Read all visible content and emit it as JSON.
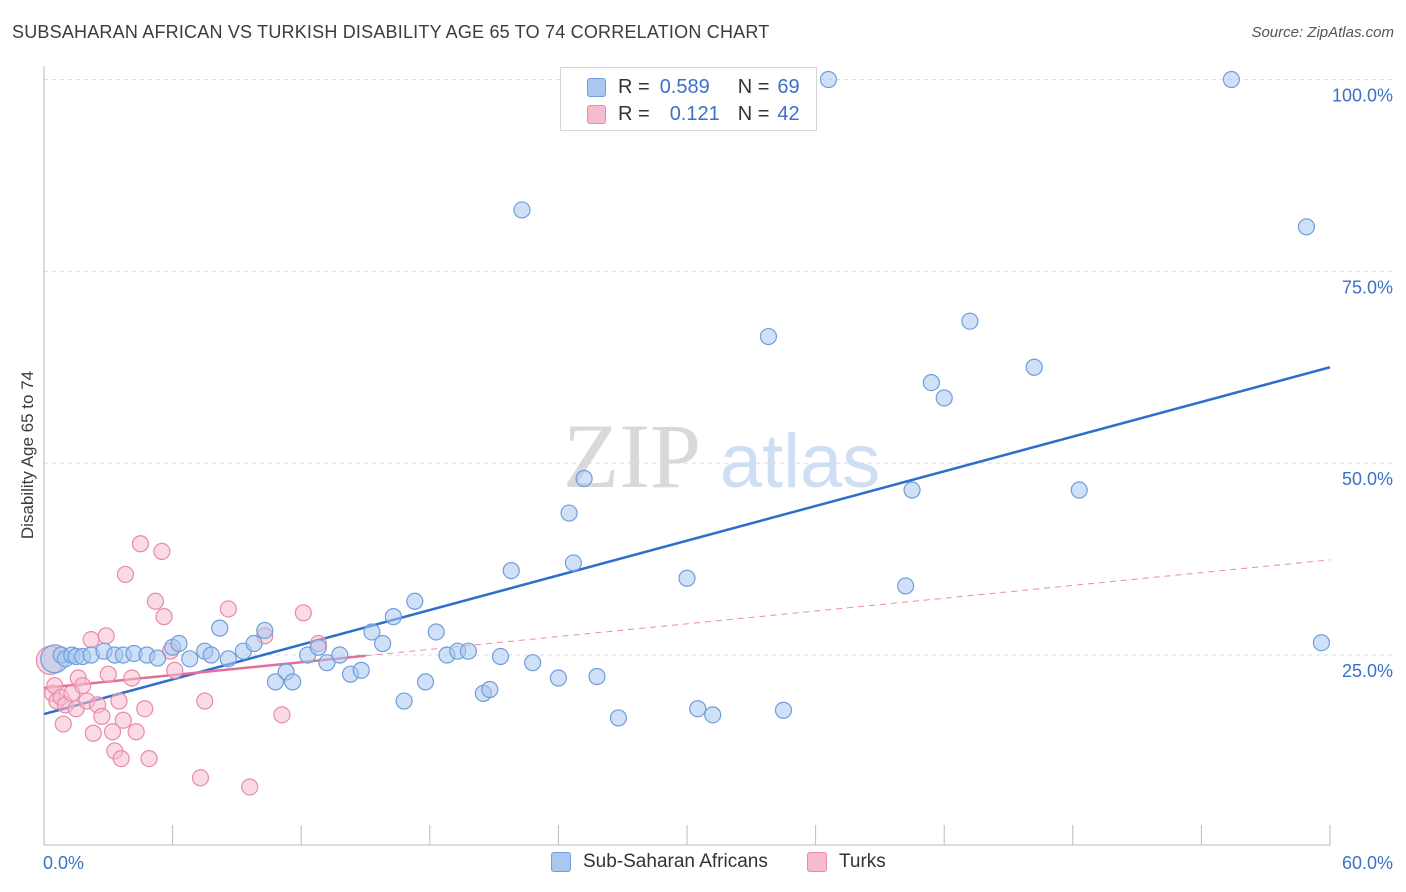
{
  "title": "SUBSAHARAN AFRICAN VS TURKISH DISABILITY AGE 65 TO 74 CORRELATION CHART",
  "source": "Source: ZipAtlas.com",
  "legend_top": {
    "rows": [
      {
        "r_label": "R =",
        "r_value": "0.589",
        "n_label": "N =",
        "n_value": "69"
      },
      {
        "r_label": "R =",
        "r_value": "0.121",
        "n_label": "N =",
        "n_value": "42"
      }
    ]
  },
  "watermark": {
    "zip": "ZIP",
    "atlas": "atlas"
  },
  "colors": {
    "blue_fill": "#a9c8f0",
    "blue_stroke": "#6e9edb",
    "blue_line": "#2e6fcc",
    "pink_fill": "#f6bccd",
    "pink_stroke": "#e98aa8",
    "pink_line": "#e0709a",
    "axis_text": "#3a72c6",
    "grid": "#dddddd"
  },
  "chart_data": {
    "type": "scatter",
    "title": "SUBSAHARAN AFRICAN VS TURKISH DISABILITY AGE 65 TO 74 CORRELATION CHART",
    "xlabel": "",
    "ylabel": "Disability Age 65 to 74",
    "xlim": [
      0,
      60
    ],
    "ylim": [
      0,
      102
    ],
    "x_tick_labels": [
      "0.0%",
      "60.0%"
    ],
    "y_ticks": [
      25,
      50,
      75,
      100
    ],
    "y_tick_labels": [
      "25.0%",
      "50.0%",
      "75.0%",
      "100.0%"
    ],
    "legend_position": "bottom",
    "series": [
      {
        "name": "Sub-Saharan Africans",
        "color": "blue",
        "points": [
          [
            0.5,
            24.5
          ],
          [
            0.8,
            25
          ],
          [
            1,
            24.5
          ],
          [
            1.3,
            25
          ],
          [
            1.5,
            24.8
          ],
          [
            1.8,
            24.8
          ],
          [
            2.2,
            25
          ],
          [
            2.8,
            25.5
          ],
          [
            3.3,
            25
          ],
          [
            3.7,
            25
          ],
          [
            4.2,
            25.2
          ],
          [
            4.8,
            25
          ],
          [
            5.3,
            24.6
          ],
          [
            6,
            26
          ],
          [
            6.3,
            26.5
          ],
          [
            6.8,
            24.5
          ],
          [
            7.5,
            25.5
          ],
          [
            7.8,
            25
          ],
          [
            8.2,
            28.5
          ],
          [
            8.6,
            24.5
          ],
          [
            9.3,
            25.5
          ],
          [
            9.8,
            26.5
          ],
          [
            10.3,
            28.2
          ],
          [
            10.8,
            21.5
          ],
          [
            11.3,
            22.8
          ],
          [
            11.6,
            21.5
          ],
          [
            12.3,
            25
          ],
          [
            12.8,
            26
          ],
          [
            13.2,
            24
          ],
          [
            13.8,
            25
          ],
          [
            14.3,
            22.5
          ],
          [
            14.8,
            23
          ],
          [
            15.3,
            28
          ],
          [
            15.8,
            26.5
          ],
          [
            16.3,
            30
          ],
          [
            16.8,
            19
          ],
          [
            17.3,
            32
          ],
          [
            17.8,
            21.5
          ],
          [
            18.3,
            28
          ],
          [
            18.8,
            25
          ],
          [
            19.3,
            25.5
          ],
          [
            19.8,
            25.5
          ],
          [
            20.5,
            20
          ],
          [
            20.8,
            20.5
          ],
          [
            21.3,
            24.8
          ],
          [
            21.8,
            36
          ],
          [
            22.3,
            83
          ],
          [
            22.8,
            24
          ],
          [
            24,
            22
          ],
          [
            24.5,
            43.5
          ],
          [
            24.7,
            37
          ],
          [
            25.2,
            48
          ],
          [
            25.8,
            22.2
          ],
          [
            26.8,
            16.8
          ],
          [
            30,
            35
          ],
          [
            30.5,
            18
          ],
          [
            31.2,
            17.2
          ],
          [
            33.8,
            66.5
          ],
          [
            34.5,
            17.8
          ],
          [
            36.6,
            100
          ],
          [
            40.2,
            34
          ],
          [
            40.5,
            46.5
          ],
          [
            41.4,
            60.5
          ],
          [
            42,
            58.5
          ],
          [
            43.2,
            68.5
          ],
          [
            46.2,
            62.5
          ],
          [
            48.3,
            46.5
          ],
          [
            55.4,
            100
          ],
          [
            58.9,
            80.8
          ],
          [
            59.6,
            26.6
          ]
        ],
        "trend": {
          "x": [
            0,
            60
          ],
          "y": [
            17.3,
            62.5
          ]
        }
      },
      {
        "name": "Turks",
        "color": "pink",
        "points": [
          [
            0.3,
            24.3
          ],
          [
            0.4,
            20
          ],
          [
            0.5,
            21
          ],
          [
            0.6,
            19
          ],
          [
            0.8,
            19.5
          ],
          [
            0.9,
            16
          ],
          [
            1,
            18.5
          ],
          [
            1.3,
            20
          ],
          [
            1.5,
            18
          ],
          [
            1.6,
            22
          ],
          [
            1.8,
            21
          ],
          [
            2,
            19
          ],
          [
            2.2,
            27
          ],
          [
            2.3,
            14.8
          ],
          [
            2.5,
            18.5
          ],
          [
            2.7,
            17
          ],
          [
            2.9,
            27.5
          ],
          [
            3,
            22.5
          ],
          [
            3.2,
            15
          ],
          [
            3.3,
            12.5
          ],
          [
            3.5,
            19
          ],
          [
            3.6,
            11.5
          ],
          [
            3.7,
            16.5
          ],
          [
            3.8,
            35.5
          ],
          [
            4.1,
            22
          ],
          [
            4.3,
            15
          ],
          [
            4.5,
            39.5
          ],
          [
            4.7,
            18
          ],
          [
            4.9,
            11.5
          ],
          [
            5.2,
            32
          ],
          [
            5.5,
            38.5
          ],
          [
            5.6,
            30
          ],
          [
            5.9,
            25.5
          ],
          [
            6.1,
            23
          ],
          [
            7.3,
            9
          ],
          [
            7.5,
            19
          ],
          [
            8.6,
            31
          ],
          [
            9.6,
            7.8
          ],
          [
            10.3,
            27.5
          ],
          [
            11.1,
            17.2
          ],
          [
            12.1,
            30.5
          ],
          [
            12.8,
            26.5
          ]
        ],
        "trend": {
          "x": [
            0,
            15
          ],
          "y": [
            20.7,
            24.9
          ]
        },
        "trend_extension": {
          "x": [
            15,
            60
          ],
          "y": [
            24.9,
            37.4
          ]
        }
      }
    ]
  },
  "legend_bottom": {
    "items": [
      {
        "label": "Sub-Saharan Africans",
        "color": "blue"
      },
      {
        "label": "Turks",
        "color": "pink"
      }
    ]
  }
}
